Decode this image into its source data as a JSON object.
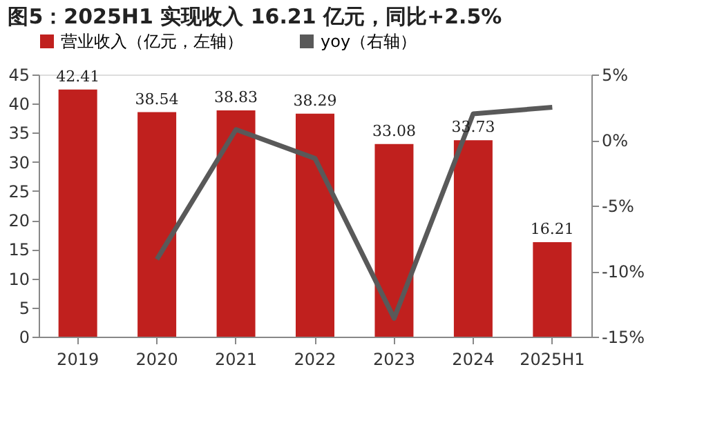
{
  "chart_data": {
    "type": "bar",
    "title": "图5：2025H1 实现收入 16.21 亿元，同比+2.5%",
    "categories": [
      "2019",
      "2020",
      "2021",
      "2022",
      "2023",
      "2024",
      "2025H1"
    ],
    "series": [
      {
        "name": "营业收入（亿元，左轴）",
        "color": "#c0201e",
        "values": [
          42.41,
          38.54,
          38.83,
          38.29,
          33.08,
          33.73,
          16.21
        ],
        "value_labels": [
          "42.41",
          "38.54",
          "38.83",
          "38.29",
          "33.08",
          "33.73",
          "16.21"
        ]
      },
      {
        "name": "yoy（右轴）",
        "type": "line",
        "axis": "y2",
        "color": "#595959",
        "values": [
          null,
          -9.1,
          0.8,
          -1.4,
          -13.6,
          2.0,
          2.5
        ]
      }
    ],
    "ylim": [
      0,
      45
    ],
    "yticks": [
      0,
      5,
      10,
      15,
      20,
      25,
      30,
      35,
      40,
      45
    ],
    "y2lim": [
      -15,
      5
    ],
    "y2ticks": [
      {
        "value": -15,
        "label": "-15%"
      },
      {
        "value": -10,
        "label": "-10%"
      },
      {
        "value": -5,
        "label": "-5%"
      },
      {
        "value": 0,
        "label": "0%"
      },
      {
        "value": 5,
        "label": "5%"
      }
    ],
    "grid": false,
    "legend": "top",
    "line_style": "solid",
    "marker": "none"
  }
}
